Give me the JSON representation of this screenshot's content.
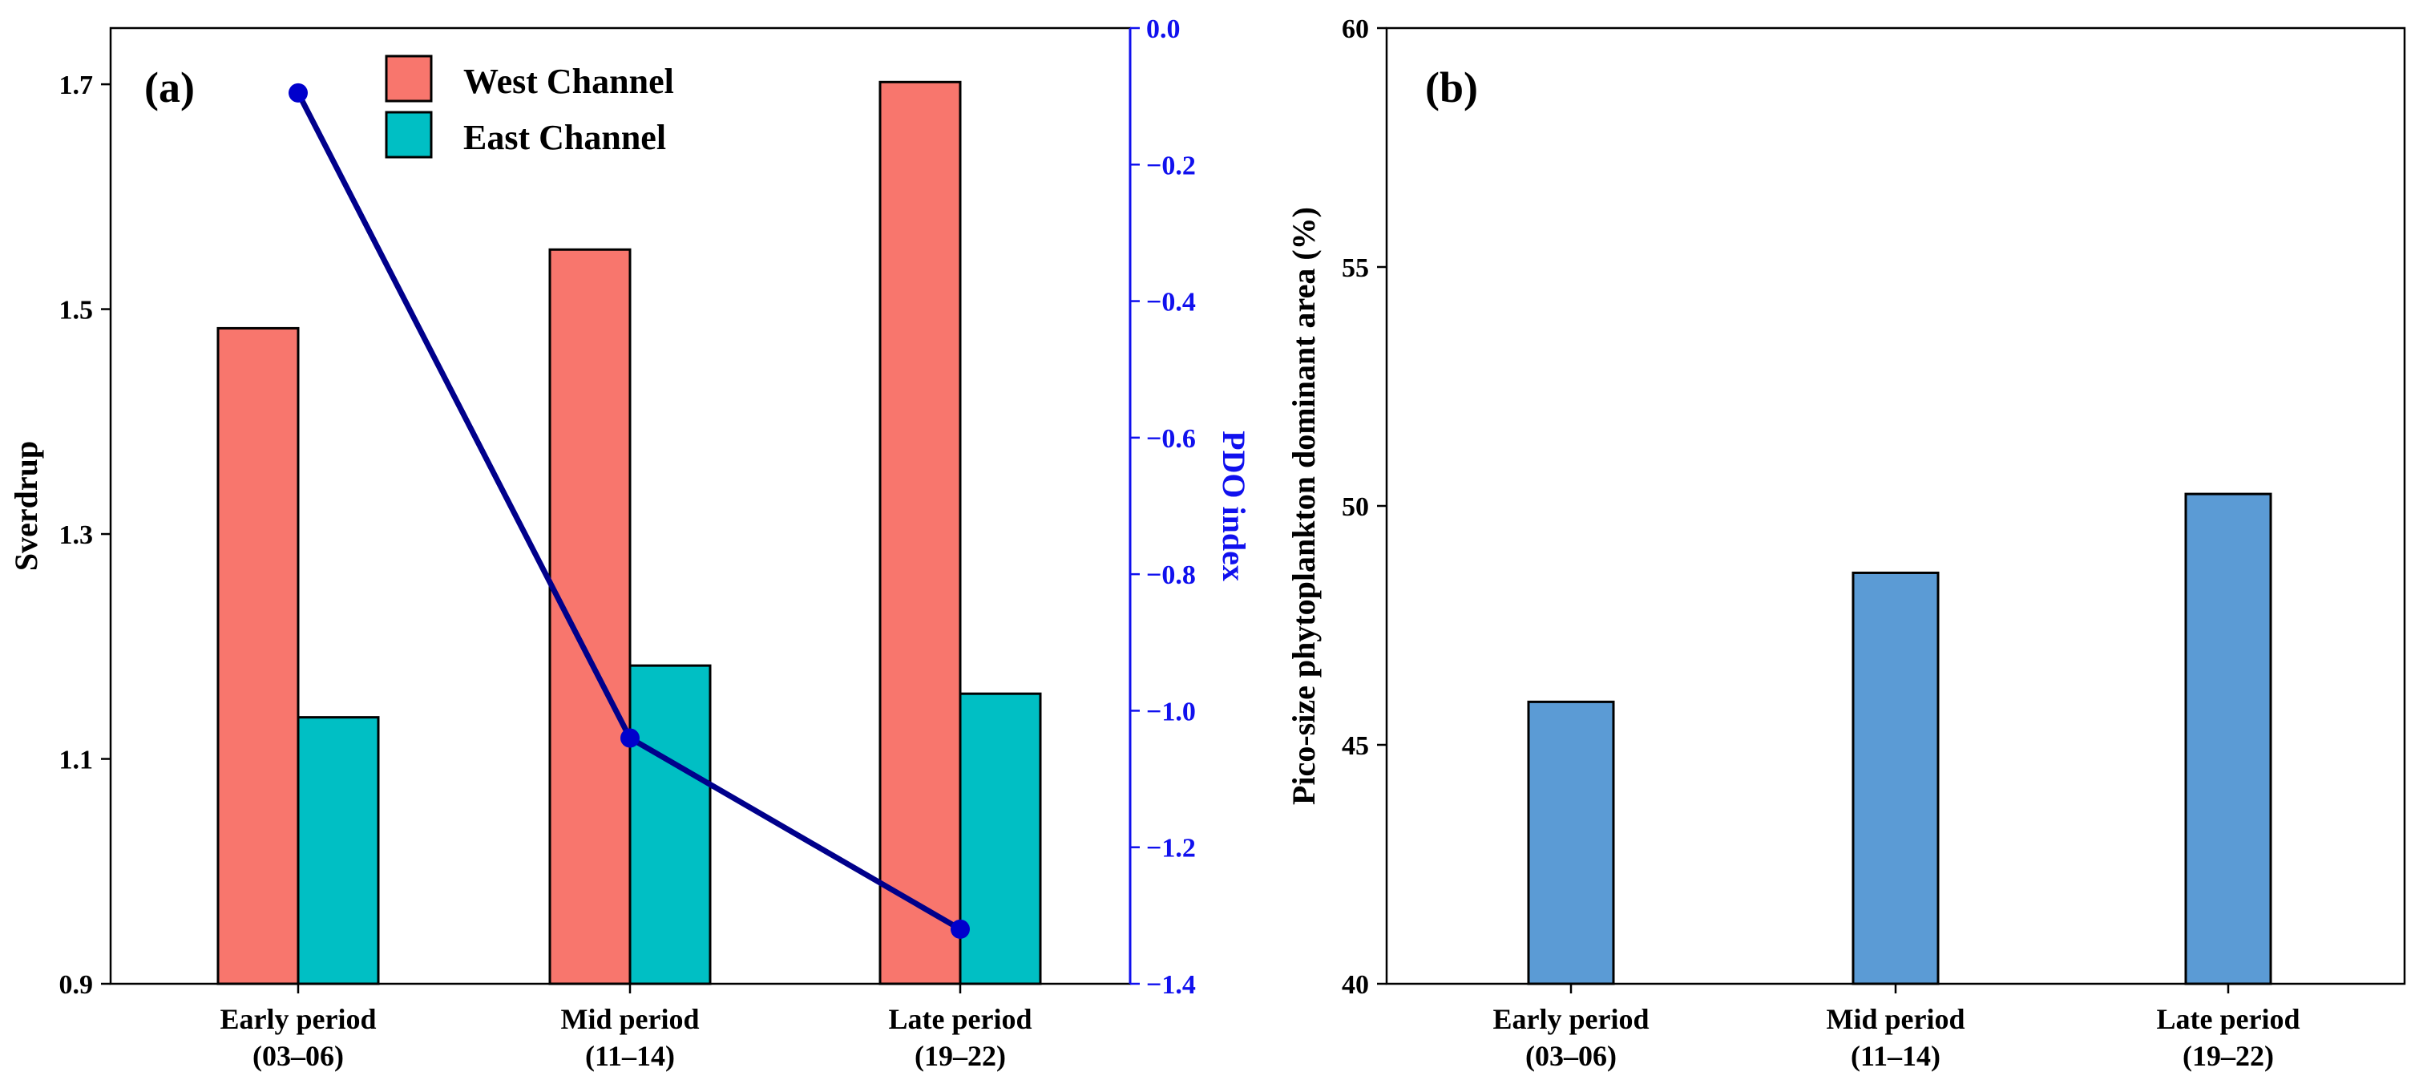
{
  "chart_data": [
    {
      "type": "bar",
      "panel_label": "(a)",
      "categories": [
        [
          "Early period",
          "(03–06)"
        ],
        [
          "Mid period",
          "(11–14)"
        ],
        [
          "Late period",
          "(19–22)"
        ]
      ],
      "series": [
        {
          "name": "West Channel",
          "values": [
            1.483,
            1.553,
            1.702
          ],
          "color": "#f8766d"
        },
        {
          "name": "East Channel",
          "values": [
            1.137,
            1.183,
            1.158
          ],
          "color": "#00bfc4"
        }
      ],
      "ylabel": "Sverdrup",
      "ylim": [
        0.9,
        1.75
      ],
      "yticks": [
        "0.9",
        "1.1",
        "1.3",
        "1.5",
        "1.7"
      ],
      "legend_position": "top-center",
      "secondary_axis": {
        "type": "line",
        "ylabel": "PDO index",
        "values": [
          -0.095,
          -1.04,
          -1.32
        ],
        "ylim": [
          -1.4,
          0.0
        ],
        "yticks": [
          "0.0",
          "−0.2",
          "−0.4",
          "−0.6",
          "−0.8",
          "−1.0",
          "−1.2",
          "−1.4"
        ],
        "color": "#00008b",
        "axis_color": "#1010ee"
      }
    },
    {
      "type": "bar",
      "panel_label": "(b)",
      "categories": [
        [
          "Early period",
          "(03–06)"
        ],
        [
          "Mid period",
          "(11–14)"
        ],
        [
          "Late period",
          "(19–22)"
        ]
      ],
      "values": [
        45.9,
        48.6,
        50.25
      ],
      "color": "#5b9bd5",
      "ylabel": "Pico-size phytoplankton dominant area (%)",
      "ylim": [
        40,
        60
      ],
      "yticks": [
        "40",
        "45",
        "50",
        "55",
        "60"
      ]
    }
  ]
}
